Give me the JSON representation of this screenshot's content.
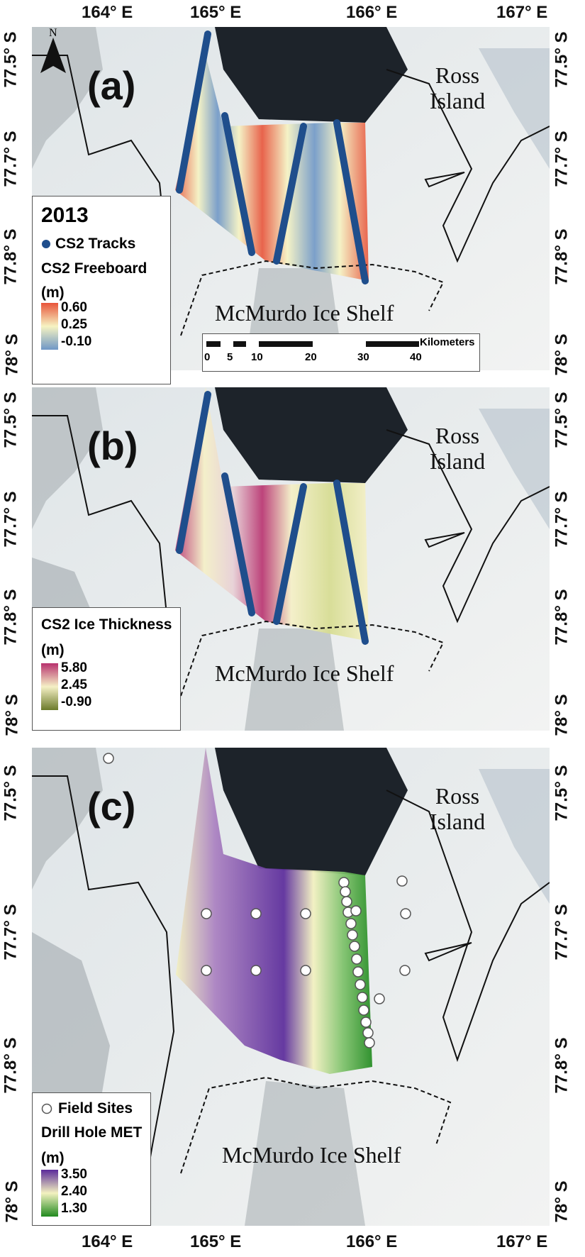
{
  "longitude_labels": [
    "164° E",
    "165° E",
    "166° E",
    "167° E"
  ],
  "latitude_labels": [
    "77.5° S",
    "77.7° S",
    "77.8° S",
    "78° S"
  ],
  "north_arrow": {
    "label": "N",
    "icon": "north-arrow-icon"
  },
  "place_names": {
    "ross_island": "Ross Island",
    "ice_shelf": "McMurdo Ice Shelf"
  },
  "scale_bar": {
    "unit": "Kilometers",
    "ticks": [
      "0",
      "5",
      "10",
      "20",
      "30",
      "40"
    ]
  },
  "panels": [
    {
      "label": "(a)",
      "legend": {
        "year": "2013",
        "marker_label": "CS2 Tracks",
        "title": "CS2 Freeboard",
        "unit": "(m)",
        "ticks": [
          "0.60",
          "0.25",
          "-0.10"
        ],
        "colors": [
          "#e8543a",
          "#f6f3c2",
          "#6f97c6"
        ]
      }
    },
    {
      "label": "(b)",
      "legend": {
        "title": "CS2 Ice Thickness",
        "unit": "(m)",
        "ticks": [
          "5.80",
          "2.45",
          "-0.90"
        ],
        "colors": [
          "#b8316e",
          "#f5f0c6",
          "#6b7a2a"
        ]
      }
    },
    {
      "label": "(c)",
      "legend": {
        "marker_label": "Field Sites",
        "title": "Drill Hole MET",
        "unit": "(m)",
        "ticks": [
          "3.50",
          "2.40",
          "1.30"
        ],
        "colors": [
          "#5a2a9a",
          "#f3f1c0",
          "#218a1f"
        ]
      }
    }
  ],
  "colors": {
    "track": "#1f4e8c",
    "open_water": "#1d232a",
    "coastline": "#111111"
  }
}
